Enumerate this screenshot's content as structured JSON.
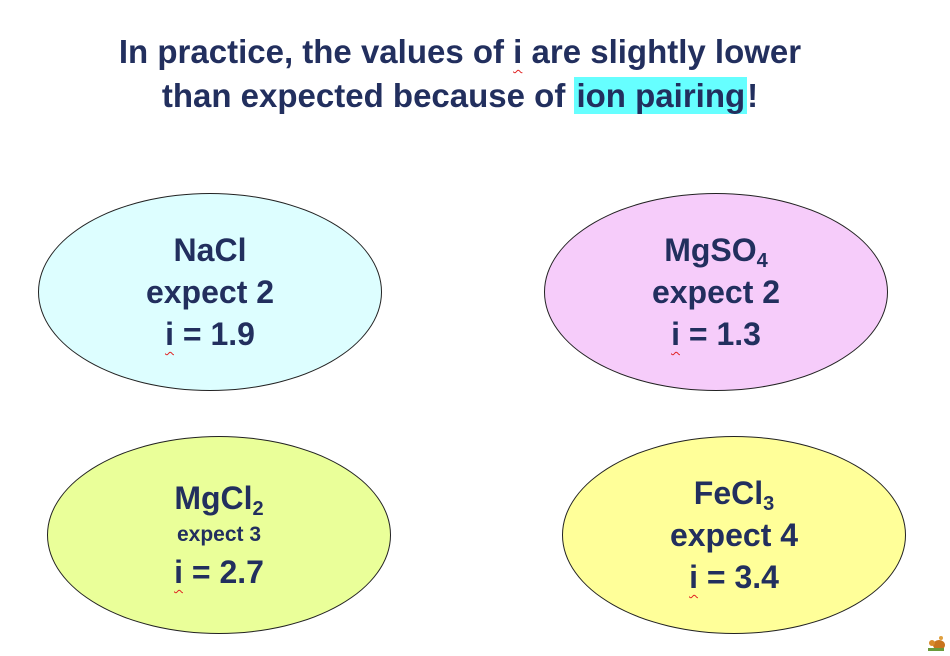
{
  "title": {
    "line1_before": "In practice, the values of",
    "line1_i": "i",
    "line1_after": "are slightly lower",
    "line2_before": "than expected because of",
    "line2_highlight": "ion pairing",
    "line2_after": "!"
  },
  "ovals": [
    {
      "formula": "NaCl",
      "expect": "expect 2",
      "i_symbol": "i",
      "i_value": "= 1.9",
      "color": "#ddfeff"
    },
    {
      "formula_base": "MgSO",
      "formula_sub": "4",
      "expect": "expect 2",
      "i_symbol": "i",
      "i_value": "= 1.3",
      "color": "#f6ccfa"
    },
    {
      "formula_base": "MgCl",
      "formula_sub": "2",
      "expect": "expect 3",
      "i_symbol": "i",
      "i_value": "= 2.7",
      "color": "#eaff99"
    },
    {
      "formula_base": "FeCl",
      "formula_sub": "3",
      "expect": "expect 4",
      "i_symbol": "i",
      "i_value": "= 3.4",
      "color": "#ffff99"
    }
  ],
  "colors": {
    "highlight": "#66ffff",
    "text": "#222f5e",
    "spellcheck_underline": "#e02020"
  }
}
